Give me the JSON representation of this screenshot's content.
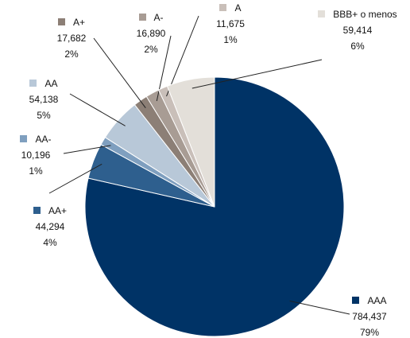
{
  "chart_data": {
    "type": "pie",
    "categories": [
      "AAA",
      "AA+",
      "AA-",
      "AA",
      "A+",
      "A-",
      "A",
      "BBB+ o menos"
    ],
    "values": [
      784437,
      44294,
      10196,
      54138,
      17682,
      16890,
      11675,
      59414
    ],
    "value_labels": [
      "784,437",
      "44,294",
      "10,196",
      "54,138",
      "17,682",
      "16,890",
      "11,675",
      "59,414"
    ],
    "percents": [
      79,
      4,
      1,
      5,
      2,
      2,
      1,
      6
    ],
    "percent_labels": [
      "79%",
      "4%",
      "1%",
      "5%",
      "2%",
      "2%",
      "1%",
      "6%"
    ],
    "colors": [
      "#003366",
      "#2e5f8e",
      "#7f9fbf",
      "#b8c8d8",
      "#8c7f76",
      "#a89c94",
      "#c9bfb9",
      "#e3dfd9"
    ]
  }
}
